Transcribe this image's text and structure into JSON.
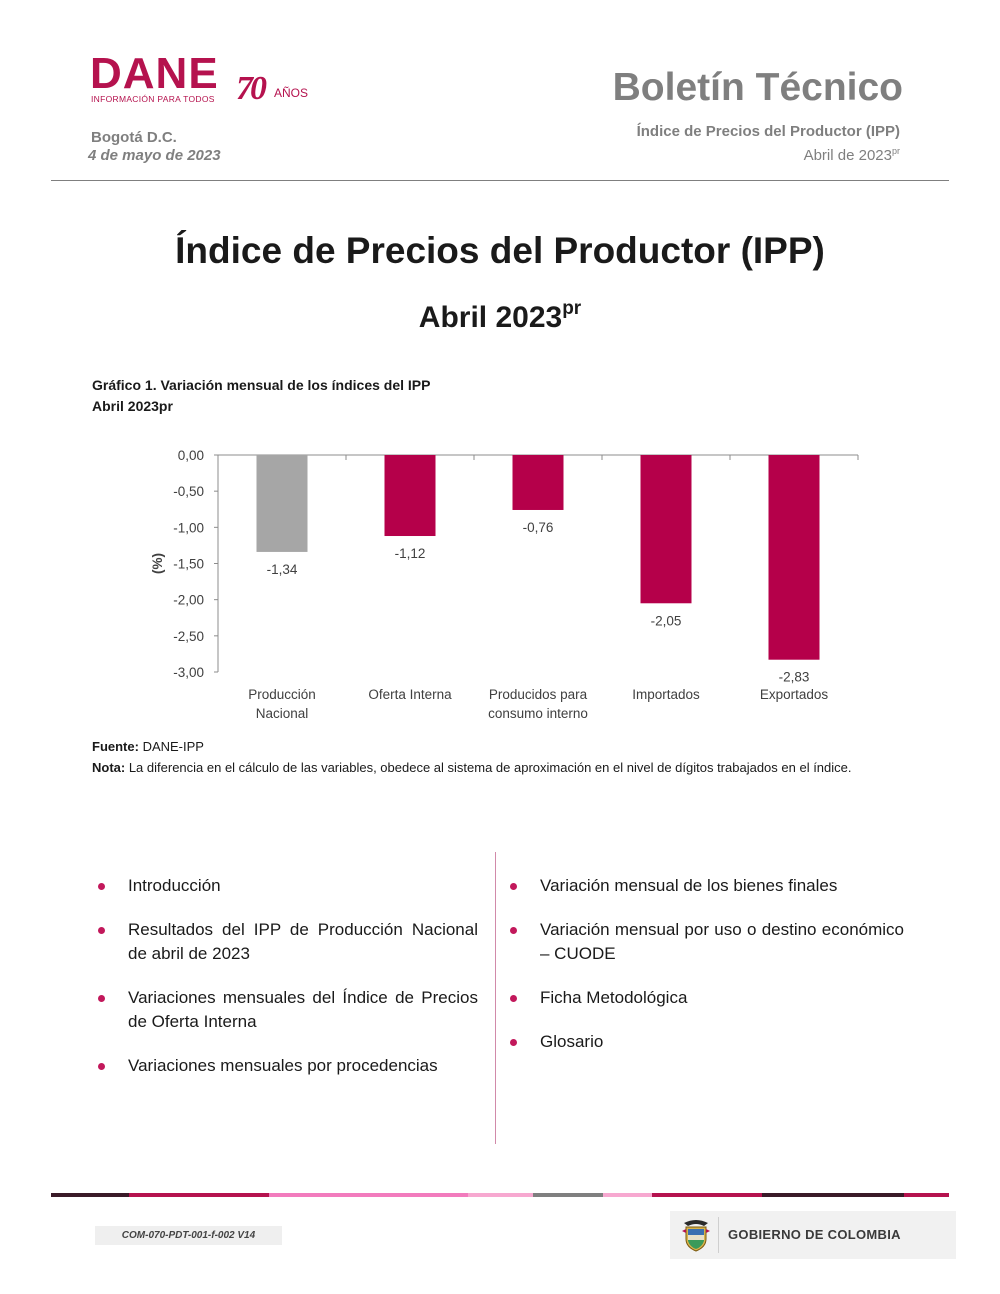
{
  "header": {
    "logo_text": "DANE",
    "logo_subtitle": "INFORMACIÓN PARA TODOS",
    "logo_anniversary": "70",
    "logo_years": "AÑOS",
    "place": "Bogotá D.C.",
    "date": "4 de mayo de 2023",
    "bulletin_title": "Boletín Técnico",
    "bulletin_subtitle": "Índice de Precios del Productor (IPP)",
    "bulletin_period": "Abril de 2023",
    "bulletin_period_sup": "pr"
  },
  "title": {
    "main": "Índice de Precios del Productor (IPP)",
    "sub": "Abril 2023",
    "sub_sup": "pr"
  },
  "chart_caption": {
    "line1": "Gráfico 1. Variación mensual de los índices del IPP",
    "line2": "Abril 2023pr"
  },
  "chart_data": {
    "type": "bar",
    "categories": [
      [
        "Producción",
        "Nacional"
      ],
      [
        "Oferta Interna"
      ],
      [
        "Producidos para",
        "consumo interno"
      ],
      [
        "Importados"
      ],
      [
        "Exportados"
      ]
    ],
    "values": [
      -1.34,
      -1.12,
      -0.76,
      -2.05,
      -2.83
    ],
    "value_labels": [
      "-1,34",
      "-1,12",
      "-0,76",
      "-2,05",
      "-2,83"
    ],
    "colors": [
      "#a6a6a6",
      "#b5004a",
      "#b5004a",
      "#b5004a",
      "#b5004a"
    ],
    "ylabel": "(%)",
    "ylim": [
      -3.0,
      0.0
    ],
    "yticks": [
      0,
      -0.5,
      -1.0,
      -1.5,
      -2.0,
      -2.5,
      -3.0
    ],
    "ytick_labels": [
      "0,00",
      "-0,50",
      "-1,00",
      "-1,50",
      "-2,00",
      "-2,50",
      "-3,00"
    ],
    "grid": false
  },
  "notes": {
    "source_label": "Fuente:",
    "source_text": " DANE-IPP",
    "note_label": "Nota:",
    "note_text": " La diferencia en el cálculo de las variables, obedece al sistema de aproximación en el nivel de dígitos trabajados en el índice."
  },
  "contents": {
    "left": [
      "Introducción",
      "Resultados del IPP de Producción Nacional de abril de 2023",
      "Variaciones mensuales del Índice de Precios de Oferta Interna",
      "Variaciones mensuales por procedencias"
    ],
    "right": [
      "Variación mensual de los bienes finales",
      "Variación mensual por uso o destino económico – CUODE",
      "Ficha Metodológica",
      "Glosario"
    ]
  },
  "footer": {
    "doc_code": "COM-070-PDT-001-f-002 V14",
    "government": "GOBIERNO DE COLOMBIA",
    "stripe_colors": [
      "#3a1a28",
      "#b5124e",
      "#f27bbd",
      "#f7a8d0",
      "#7f7f7f",
      "#f7a8d0",
      "#b5124e",
      "#3a1a28",
      "#b5124e"
    ]
  }
}
